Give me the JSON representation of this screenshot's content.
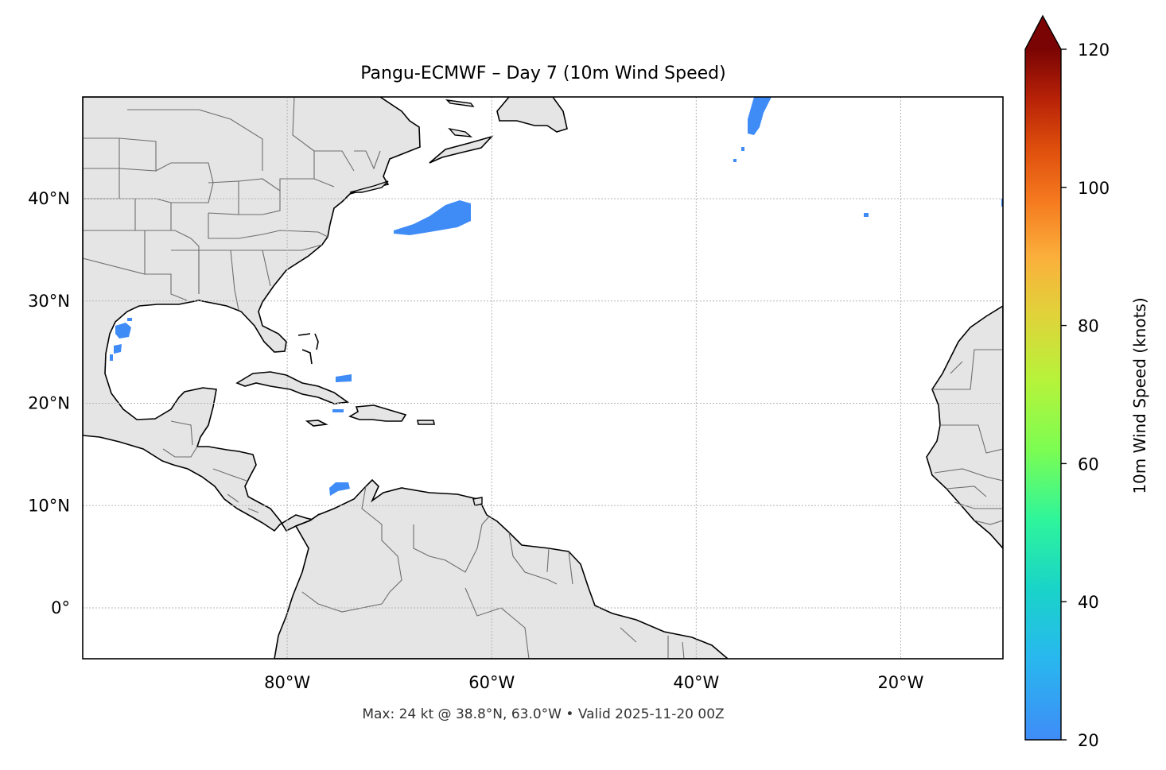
{
  "title": "Pangu-ECMWF – Day 7 (10m Wind Speed)",
  "footer": "Max: 24 kt @ 38.8°N, 63.0°W • Valid 2025-11-20 00Z",
  "map": {
    "lon_range": [
      -100,
      -10
    ],
    "lat_range": [
      -5,
      50
    ],
    "x_ticks": [
      {
        "lon": -80,
        "label": "80°W"
      },
      {
        "lon": -60,
        "label": "60°W"
      },
      {
        "lon": -40,
        "label": "40°W"
      },
      {
        "lon": -20,
        "label": "20°W"
      }
    ],
    "y_ticks": [
      {
        "lat": 0,
        "label": "0°"
      },
      {
        "lat": 10,
        "label": "10°N"
      },
      {
        "lat": 20,
        "label": "20°N"
      },
      {
        "lat": 30,
        "label": "30°N"
      },
      {
        "lat": 40,
        "label": "40°N"
      }
    ],
    "land_color": "#e5e5e5",
    "gridlines": true
  },
  "colorbar": {
    "label": "10m Wind Speed (knots)",
    "vmin": 20,
    "vmax": 120,
    "ticks": [
      {
        "value": 20,
        "label": "20"
      },
      {
        "value": 40,
        "label": "40"
      },
      {
        "value": 60,
        "label": "60"
      },
      {
        "value": 80,
        "label": "80"
      },
      {
        "value": 100,
        "label": "100"
      },
      {
        "value": 120,
        "label": "120"
      }
    ],
    "extend": "max",
    "colormap": "turbo"
  },
  "wind_patches": {
    "color": "#3f8cf7",
    "areas": [
      "off Mid-Atlantic coast",
      "NW Gulf of Mexico",
      "north of Haiti",
      "north of Colombia",
      "central North Atlantic"
    ]
  }
}
